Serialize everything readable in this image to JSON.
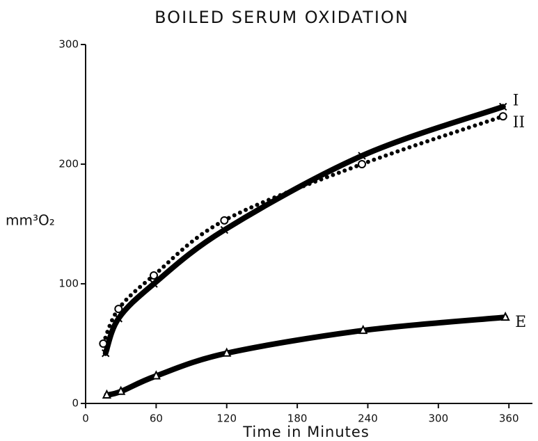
{
  "chart_data": {
    "type": "line",
    "title": "BOILED SERUM OXIDATION",
    "xlabel": "Time in Minutes",
    "ylabel": "mm³O₂",
    "xlim": [
      0,
      380
    ],
    "xticks": [
      0,
      60,
      120,
      180,
      240,
      300,
      360
    ],
    "ylim": [
      0,
      300
    ],
    "yticks": [
      0,
      100,
      200,
      300
    ],
    "series": [
      {
        "name": "I",
        "color": "#000000",
        "line_style": "solid",
        "marker": "x",
        "x": [
          17,
          28,
          58,
          118,
          235,
          355
        ],
        "values": [
          42,
          71,
          100,
          145,
          207,
          248
        ]
      },
      {
        "name": "II",
        "color": "#000000",
        "line_style": "dotted",
        "marker": "o",
        "x": [
          15,
          28,
          58,
          118,
          235,
          355
        ],
        "values": [
          50,
          79,
          107,
          153,
          200,
          240
        ]
      },
      {
        "name": "E",
        "color": "#000000",
        "line_style": "solid",
        "marker": "triangle",
        "x": [
          18,
          30,
          60,
          120,
          236,
          357
        ],
        "values": [
          7,
          10,
          23,
          42,
          61,
          72
        ]
      }
    ]
  }
}
